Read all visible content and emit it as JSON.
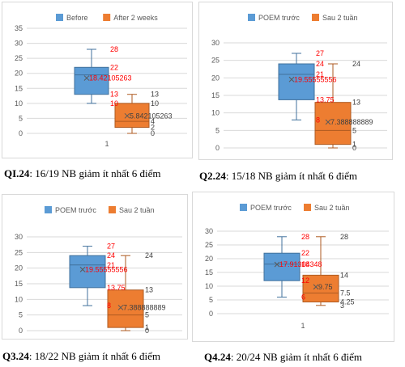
{
  "colors": {
    "before": "#5b9bd5",
    "after": "#ed7d31",
    "red_label": "#ff0000",
    "dark_label": "#404040",
    "axis_text": "#595959",
    "grid": "#d9d9d9"
  },
  "captions": [
    {
      "code": "QI.24",
      "text": ": 16/19 NB giảm ít nhất 6 điểm"
    },
    {
      "code": "Q2.24",
      "text": ": 15/18 NB giảm ít nhất 6 điểm"
    },
    {
      "code": "Q3.24",
      "text": ": 18/22 NB giảm ít nhất 6 điểm"
    },
    {
      "code": "Q4.24",
      "text": ": 20/24 NB giảm ít nhất 6 điểm"
    }
  ],
  "chart_data": [
    {
      "type": "box",
      "x_category": "1",
      "ylim": [
        0,
        35
      ],
      "ytick_step": 5,
      "legend": [
        "Before",
        "After 2 weeks"
      ],
      "series": [
        {
          "name": "Before",
          "min": 10,
          "q1": 13,
          "median": 19.5,
          "q3": 22,
          "max": 28,
          "mean": 18.42105263,
          "labels": [
            "28",
            "22",
            "18.42105263",
            "13",
            "10"
          ]
        },
        {
          "name": "After 2 weeks",
          "min": 0,
          "q1": 2,
          "median": 4,
          "q3": 10,
          "max": 13,
          "mean": 5.842105263,
          "labels": [
            "13",
            "10",
            "5.842105263",
            "4",
            "2",
            "0"
          ]
        }
      ]
    },
    {
      "type": "box",
      "x_category": "",
      "ylim": [
        0,
        30
      ],
      "ytick_step": 5,
      "legend": [
        "POEM trước",
        "Sau 2 tuần"
      ],
      "series": [
        {
          "name": "POEM trước",
          "min": 8,
          "q1": 13.75,
          "median": 21,
          "q3": 24,
          "max": 27,
          "mean": 19.55555556,
          "labels": [
            "27",
            "24",
            "21",
            "19.55555556",
            "13.75",
            "8"
          ]
        },
        {
          "name": "Sau 2 tuần",
          "min": 0,
          "q1": 1,
          "median": 5,
          "q3": 13,
          "max": 24,
          "mean": 7.388888889,
          "labels": [
            "24",
            "13",
            "7.388888889",
            "5",
            "1",
            "0"
          ]
        }
      ]
    },
    {
      "type": "box",
      "x_category": "",
      "ylim": [
        0,
        30
      ],
      "ytick_step": 5,
      "legend": [
        "POEM trước",
        "Sau 2 tuần"
      ],
      "series": [
        {
          "name": "POEM trước",
          "min": 8,
          "q1": 13.75,
          "median": 21,
          "q3": 24,
          "max": 27,
          "mean": 19.55555556,
          "labels": [
            "27",
            "24",
            "21",
            "19.55555556",
            "13.75",
            "8"
          ]
        },
        {
          "name": "Sau 2 tuần",
          "min": 0,
          "q1": 1,
          "median": 5,
          "q3": 13,
          "max": 24,
          "mean": 7.388888889,
          "labels": [
            "24",
            "13",
            "7.388888889",
            "5",
            "1",
            "0"
          ]
        }
      ]
    },
    {
      "type": "box",
      "x_category": "1",
      "ylim": [
        0,
        30
      ],
      "ytick_step": 5,
      "legend": [
        "POEM trước",
        "Sau 2 tuần"
      ],
      "series": [
        {
          "name": "POEM trước",
          "min": 6,
          "q1": 12,
          "median": 18,
          "q3": 22,
          "max": 28,
          "mean": 17.91304348,
          "labels": [
            "28",
            "22",
            "18",
            "17.91304348",
            "12",
            "6"
          ]
        },
        {
          "name": "Sau 2 tuần",
          "min": 3,
          "q1": 4.25,
          "median": 7.5,
          "q3": 14,
          "max": 28,
          "mean": 9.75,
          "labels": [
            "28",
            "14",
            "9.75",
            "7.5",
            "4.25",
            "3"
          ]
        }
      ]
    }
  ]
}
